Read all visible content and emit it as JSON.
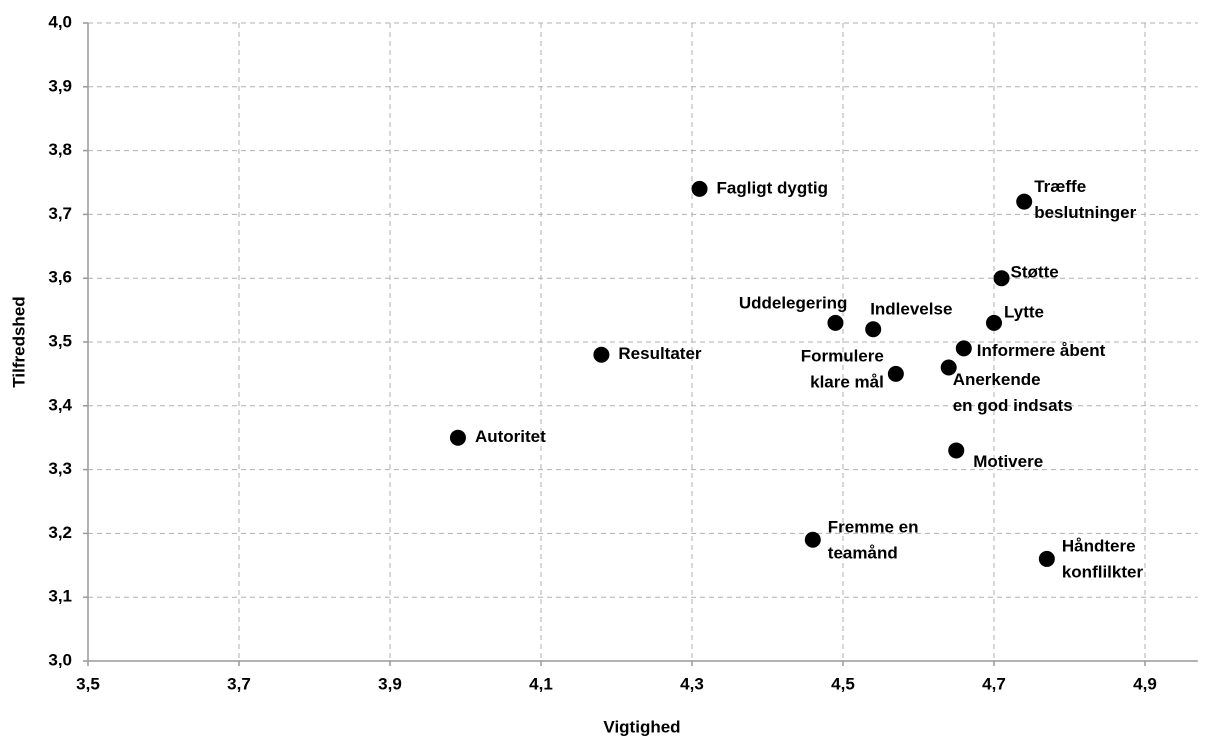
{
  "chart_data": {
    "type": "scatter",
    "x_label": "Vigtighed",
    "y_label": "Tilfredshed",
    "labels": [
      [
        "Fagligt dygtig"
      ],
      [
        "Træffe",
        "beslutninger"
      ],
      [
        "Støtte"
      ],
      [
        "Uddelegering"
      ],
      [
        "Indlevelse"
      ],
      [
        "Lytte"
      ],
      [
        "Informere åbent"
      ],
      [
        "Resultater"
      ],
      [
        "Anerkende",
        "en god indsats"
      ],
      [
        "Formulere",
        "klare mål"
      ],
      [
        "Autoritet"
      ],
      [
        "Motivere"
      ],
      [
        "Fremme en",
        "teamånd"
      ],
      [
        "Håndtere",
        "konflilkter"
      ]
    ],
    "x": [
      4.31,
      4.74,
      4.71,
      4.49,
      4.54,
      4.7,
      4.66,
      4.18,
      4.64,
      4.57,
      3.99,
      4.65,
      4.46,
      4.77
    ],
    "y": [
      3.74,
      3.72,
      3.6,
      3.53,
      3.52,
      3.53,
      3.49,
      3.48,
      3.46,
      3.45,
      3.35,
      3.33,
      3.19,
      3.16
    ],
    "color": "#000000",
    "xlim": [
      3.5,
      4.97
    ],
    "xticks": [
      {
        "value": 3.5,
        "label": "3,5"
      },
      {
        "value": 3.7,
        "label": "3,7"
      },
      {
        "value": 3.9,
        "label": "3,9"
      },
      {
        "value": 4.1,
        "label": "4,1"
      },
      {
        "value": 4.3,
        "label": "4,3"
      },
      {
        "value": 4.5,
        "label": "4,5"
      },
      {
        "value": 4.7,
        "label": "4,7"
      },
      {
        "value": 4.9,
        "label": "4,9"
      }
    ],
    "ylim": [
      3.0,
      4.0
    ],
    "yticks": [
      {
        "value": 3.0,
        "label": "3,0"
      },
      {
        "value": 3.1,
        "label": "3,1"
      },
      {
        "value": 3.2,
        "label": "3,2"
      },
      {
        "value": 3.3,
        "label": "3,3"
      },
      {
        "value": 3.4,
        "label": "3,4"
      },
      {
        "value": 3.5,
        "label": "3,5"
      },
      {
        "value": 3.6,
        "label": "3,6"
      },
      {
        "value": 3.7,
        "label": "3,7"
      },
      {
        "value": 3.8,
        "label": "3,8"
      },
      {
        "value": 3.9,
        "label": "3,9"
      },
      {
        "value": 4.0,
        "label": "4,0"
      }
    ],
    "grid": true
  }
}
